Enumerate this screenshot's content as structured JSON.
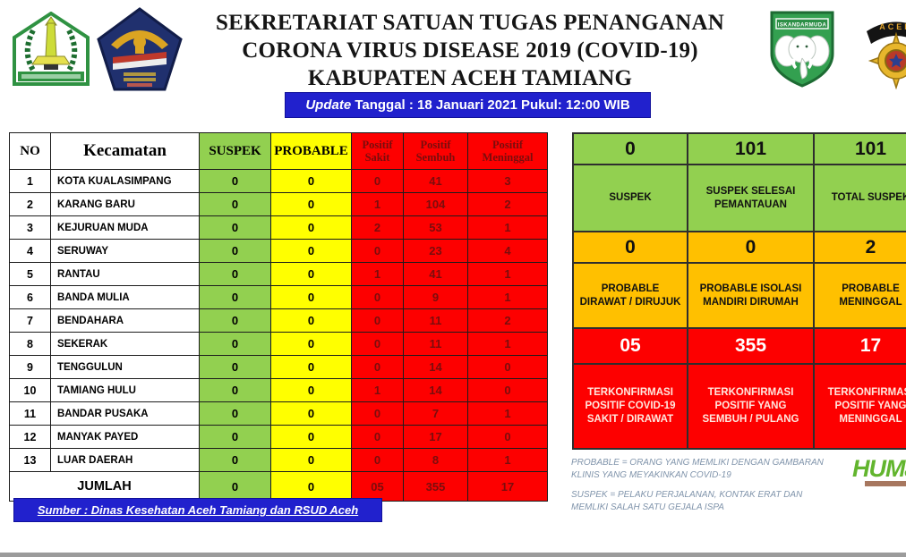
{
  "header": {
    "title_lines": [
      "SEKRETARIAT SATUAN TUGAS PENANGANAN",
      "CORONA VIRUS DISEASE 2019 (COVID-19)",
      "KABUPATEN ACEH TAMIANG"
    ],
    "update": {
      "italic_part": "Update",
      "rest": " Tanggal : 18 Januari 2021 Pukul: 12:00 WIB"
    },
    "logos": {
      "kodam_banner": "ISKANDARMUDA",
      "polri_banner": "ACEH"
    }
  },
  "table": {
    "columns": [
      "NO",
      "Kecamatan",
      "SUSPEK",
      "PROBABLE",
      "Positif Sakit",
      "Positif Sembuh",
      "Positif Meninggal"
    ],
    "rows": [
      [
        "1",
        "KOTA KUALASIMPANG",
        "0",
        "0",
        "0",
        "41",
        "3"
      ],
      [
        "2",
        "KARANG BARU",
        "0",
        "0",
        "1",
        "104",
        "2"
      ],
      [
        "3",
        "KEJURUAN MUDA",
        "0",
        "0",
        "2",
        "53",
        "1"
      ],
      [
        "4",
        "SERUWAY",
        "0",
        "0",
        "0",
        "23",
        "4"
      ],
      [
        "5",
        "RANTAU",
        "0",
        "0",
        "1",
        "41",
        "1"
      ],
      [
        "6",
        "BANDA MULIA",
        "0",
        "0",
        "0",
        "9",
        "1"
      ],
      [
        "7",
        "BENDAHARA",
        "0",
        "0",
        "0",
        "11",
        "2"
      ],
      [
        "8",
        "SEKERAK",
        "0",
        "0",
        "0",
        "11",
        "1"
      ],
      [
        "9",
        "TENGGULUN",
        "0",
        "0",
        "0",
        "14",
        "0"
      ],
      [
        "10",
        "TAMIANG HULU",
        "0",
        "0",
        "1",
        "14",
        "0"
      ],
      [
        "11",
        "BANDAR PUSAKA",
        "0",
        "0",
        "0",
        "7",
        "1"
      ],
      [
        "12",
        "MANYAK PAYED",
        "0",
        "0",
        "0",
        "17",
        "0"
      ],
      [
        "13",
        "LUAR DAERAH",
        "0",
        "0",
        "0",
        "8",
        "1"
      ]
    ],
    "total": [
      "JUMLAH",
      "0",
      "0",
      "05",
      "355",
      "17"
    ]
  },
  "summary": {
    "sections": [
      {
        "name": "suspek",
        "cards": [
          {
            "value": "0",
            "label": "SUSPEK"
          },
          {
            "value": "101",
            "label": "SUSPEK SELESAI PEMANTAUAN"
          },
          {
            "value": "101",
            "label": "TOTAL SUSPEK"
          }
        ]
      },
      {
        "name": "probable",
        "cards": [
          {
            "value": "0",
            "label": "PROBABLE DIRAWAT / DIRUJUK"
          },
          {
            "value": "0",
            "label": "PROBABLE ISOLASI MANDIRI DIRUMAH"
          },
          {
            "value": "2",
            "label": "PROBABLE MENINGGAL"
          }
        ]
      },
      {
        "name": "terkonfirmasi",
        "cards": [
          {
            "value": "05",
            "label": "TERKONFIRMASI POSITIF COVID-19 SAKIT / DIRAWAT"
          },
          {
            "value": "355",
            "label": "TERKONFIRMASI POSITIF YANG SEMBUH / PULANG"
          },
          {
            "value": "17",
            "label": "TERKONFIRMASI POSITIF YANG MENINGGAL"
          }
        ]
      }
    ]
  },
  "notes": [
    "PROBABLE = ORANG YANG MEMLIKI DENGAN GAMBARAN KLINIS YANG MEYAKINKAN COVID-19",
    "SUSPEK = PELAKU PERJALANAN, KONTAK ERAT DAN MEMLIKI SALAH SATU GEJALA ISPA"
  ],
  "source": "Sumber : Dinas Kesehatan Aceh Tamiang dan RSUD Aceh Tamiang",
  "humas_label": "HUMas",
  "colors": {
    "green": "#92d050",
    "yellow": "#ffff00",
    "orange": "#ffc000",
    "red": "#fd0000",
    "banner_blue": "#2121cd",
    "maroon_text": "#7a0d0d"
  }
}
